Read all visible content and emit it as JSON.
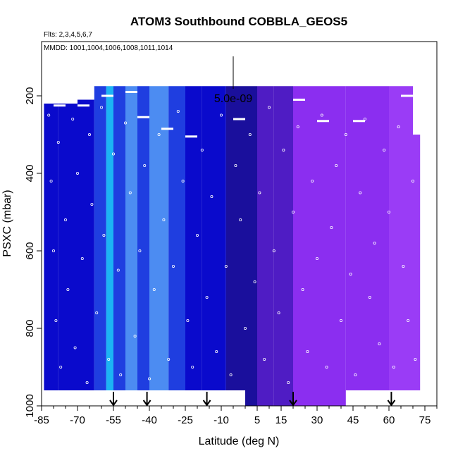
{
  "chart_data": {
    "type": "heatmap",
    "title": "ATOM3 Southbound COBBLA_GEOS5",
    "flights_label": "Flts: 2,3,4,5,6,7",
    "dates_label": "MMDD: 1001,1004,1006,1008,1011,1014",
    "xlabel": "Latitude (deg N)",
    "ylabel": "PSXC (mbar)",
    "xlim": [
      -85,
      80
    ],
    "ylim": [
      1000,
      60
    ],
    "y_reversed": true,
    "grid": false,
    "x_ticks": [
      -85,
      -70,
      -55,
      -40,
      -25,
      -10,
      5,
      15,
      30,
      45,
      60,
      75
    ],
    "x_tick_labels": [
      "-85",
      "-70",
      "-55",
      "-40",
      "-25",
      "-10",
      "5",
      "15",
      "30",
      "45",
      "60",
      "75"
    ],
    "x_minor_ticks": [
      -80,
      -75,
      -65,
      -60,
      -50,
      -45,
      -35,
      -30,
      -20,
      -15,
      -5,
      0,
      10,
      20,
      25,
      35,
      40,
      50,
      55,
      65,
      70,
      80
    ],
    "y_ticks": [
      200,
      400,
      600,
      800,
      1000
    ],
    "y_tick_labels": [
      "200",
      "400",
      "600",
      "800",
      "1000"
    ],
    "scale_label": "5.0e-09",
    "scale_bar_lat": -5,
    "colors": {
      "dark_blue": "#0a0acc",
      "mid_blue": "#1f3ee0",
      "light_blue": "#4c8cf2",
      "cyan": "#1cb4f4",
      "navy": "#1a0f9c",
      "indigo": "#4f1cc4",
      "purple": "#8b2ef0",
      "violet": "#9a3cf6",
      "points": "#ffffff"
    },
    "curtain_columns": [
      {
        "lat_min": -84,
        "lat_max": -78,
        "p_top": 220,
        "p_bot": 960,
        "color": "dark_blue"
      },
      {
        "lat_min": -78,
        "lat_max": -70,
        "p_top": 220,
        "p_bot": 960,
        "color": "dark_blue"
      },
      {
        "lat_min": -70,
        "lat_max": -63,
        "p_top": 210,
        "p_bot": 960,
        "color": "dark_blue"
      },
      {
        "lat_min": -63,
        "lat_max": -58,
        "p_top": 175,
        "p_bot": 960,
        "color": "mid_blue"
      },
      {
        "lat_min": -58,
        "lat_max": -55,
        "p_top": 175,
        "p_bot": 960,
        "color": "cyan"
      },
      {
        "lat_min": -55,
        "lat_max": -50,
        "p_top": 175,
        "p_bot": 960,
        "color": "mid_blue"
      },
      {
        "lat_min": -50,
        "lat_max": -45,
        "p_top": 175,
        "p_bot": 960,
        "color": "light_blue"
      },
      {
        "lat_min": -45,
        "lat_max": -40,
        "p_top": 175,
        "p_bot": 960,
        "color": "mid_blue"
      },
      {
        "lat_min": -40,
        "lat_max": -32,
        "p_top": 175,
        "p_bot": 960,
        "color": "light_blue"
      },
      {
        "lat_min": -32,
        "lat_max": -25,
        "p_top": 175,
        "p_bot": 960,
        "color": "mid_blue"
      },
      {
        "lat_min": -25,
        "lat_max": -18,
        "p_top": 175,
        "p_bot": 960,
        "color": "dark_blue"
      },
      {
        "lat_min": -18,
        "lat_max": -8,
        "p_top": 175,
        "p_bot": 960,
        "color": "dark_blue"
      },
      {
        "lat_min": -8,
        "lat_max": 0,
        "p_top": 175,
        "p_bot": 960,
        "color": "navy"
      },
      {
        "lat_min": 0,
        "lat_max": 5,
        "p_top": 175,
        "p_bot": 1000,
        "color": "navy"
      },
      {
        "lat_min": 5,
        "lat_max": 12,
        "p_top": 175,
        "p_bot": 1000,
        "color": "indigo"
      },
      {
        "lat_min": 12,
        "lat_max": 20,
        "p_top": 175,
        "p_bot": 1000,
        "color": "indigo"
      },
      {
        "lat_min": 20,
        "lat_max": 30,
        "p_top": 175,
        "p_bot": 1000,
        "color": "purple"
      },
      {
        "lat_min": 30,
        "lat_max": 42,
        "p_top": 175,
        "p_bot": 1000,
        "color": "purple"
      },
      {
        "lat_min": 42,
        "lat_max": 60,
        "p_top": 175,
        "p_bot": 960,
        "color": "purple"
      },
      {
        "lat_min": 60,
        "lat_max": 70,
        "p_top": 175,
        "p_bot": 960,
        "color": "violet"
      },
      {
        "lat_min": 70,
        "lat_max": 73,
        "p_top": 300,
        "p_bot": 960,
        "color": "violet"
      }
    ],
    "profile_markers_lat": [
      -55,
      -41,
      -16,
      20,
      61
    ],
    "sample_points": [
      [
        -82,
        250
      ],
      [
        -81,
        420
      ],
      [
        -80,
        600
      ],
      [
        -79,
        780
      ],
      [
        -78,
        320
      ],
      [
        -77,
        900
      ],
      [
        -75,
        520
      ],
      [
        -74,
        700
      ],
      [
        -72,
        260
      ],
      [
        -71,
        850
      ],
      [
        -70,
        400
      ],
      [
        -68,
        620
      ],
      [
        -66,
        940
      ],
      [
        -65,
        300
      ],
      [
        -64,
        480
      ],
      [
        -62,
        760
      ],
      [
        -60,
        230
      ],
      [
        -59,
        560
      ],
      [
        -57,
        880
      ],
      [
        -55,
        350
      ],
      [
        -53,
        650
      ],
      [
        -52,
        920
      ],
      [
        -50,
        270
      ],
      [
        -48,
        450
      ],
      [
        -46,
        820
      ],
      [
        -44,
        600
      ],
      [
        -42,
        380
      ],
      [
        -40,
        930
      ],
      [
        -38,
        700
      ],
      [
        -36,
        300
      ],
      [
        -34,
        520
      ],
      [
        -32,
        880
      ],
      [
        -30,
        640
      ],
      [
        -28,
        240
      ],
      [
        -26,
        420
      ],
      [
        -24,
        780
      ],
      [
        -22,
        900
      ],
      [
        -20,
        560
      ],
      [
        -18,
        340
      ],
      [
        -16,
        720
      ],
      [
        -14,
        460
      ],
      [
        -12,
        860
      ],
      [
        -10,
        250
      ],
      [
        -8,
        640
      ],
      [
        -6,
        920
      ],
      [
        -4,
        380
      ],
      [
        -2,
        520
      ],
      [
        0,
        800
      ],
      [
        2,
        300
      ],
      [
        4,
        680
      ],
      [
        6,
        450
      ],
      [
        8,
        880
      ],
      [
        10,
        230
      ],
      [
        12,
        600
      ],
      [
        14,
        760
      ],
      [
        16,
        340
      ],
      [
        18,
        940
      ],
      [
        20,
        500
      ],
      [
        22,
        280
      ],
      [
        24,
        700
      ],
      [
        26,
        860
      ],
      [
        28,
        420
      ],
      [
        30,
        620
      ],
      [
        32,
        250
      ],
      [
        34,
        900
      ],
      [
        36,
        540
      ],
      [
        38,
        380
      ],
      [
        40,
        780
      ],
      [
        42,
        300
      ],
      [
        44,
        660
      ],
      [
        46,
        920
      ],
      [
        48,
        450
      ],
      [
        50,
        260
      ],
      [
        52,
        720
      ],
      [
        54,
        580
      ],
      [
        56,
        840
      ],
      [
        58,
        340
      ],
      [
        60,
        500
      ],
      [
        62,
        900
      ],
      [
        64,
        280
      ],
      [
        66,
        640
      ],
      [
        68,
        780
      ],
      [
        70,
        420
      ],
      [
        71,
        880
      ]
    ],
    "flight_segments": [
      [
        -80,
        225,
        -75,
        225
      ],
      [
        -70,
        225,
        -65,
        225
      ],
      [
        -60,
        200,
        -55,
        200
      ],
      [
        -50,
        190,
        -45,
        190
      ],
      [
        -45,
        255,
        -40,
        255
      ],
      [
        -35,
        285,
        -30,
        285
      ],
      [
        -25,
        305,
        -20,
        305
      ],
      [
        -5,
        260,
        0,
        260
      ],
      [
        30,
        265,
        35,
        265
      ],
      [
        45,
        265,
        50,
        265
      ],
      [
        65,
        200,
        70,
        200
      ],
      [
        20,
        210,
        25,
        210
      ]
    ]
  }
}
